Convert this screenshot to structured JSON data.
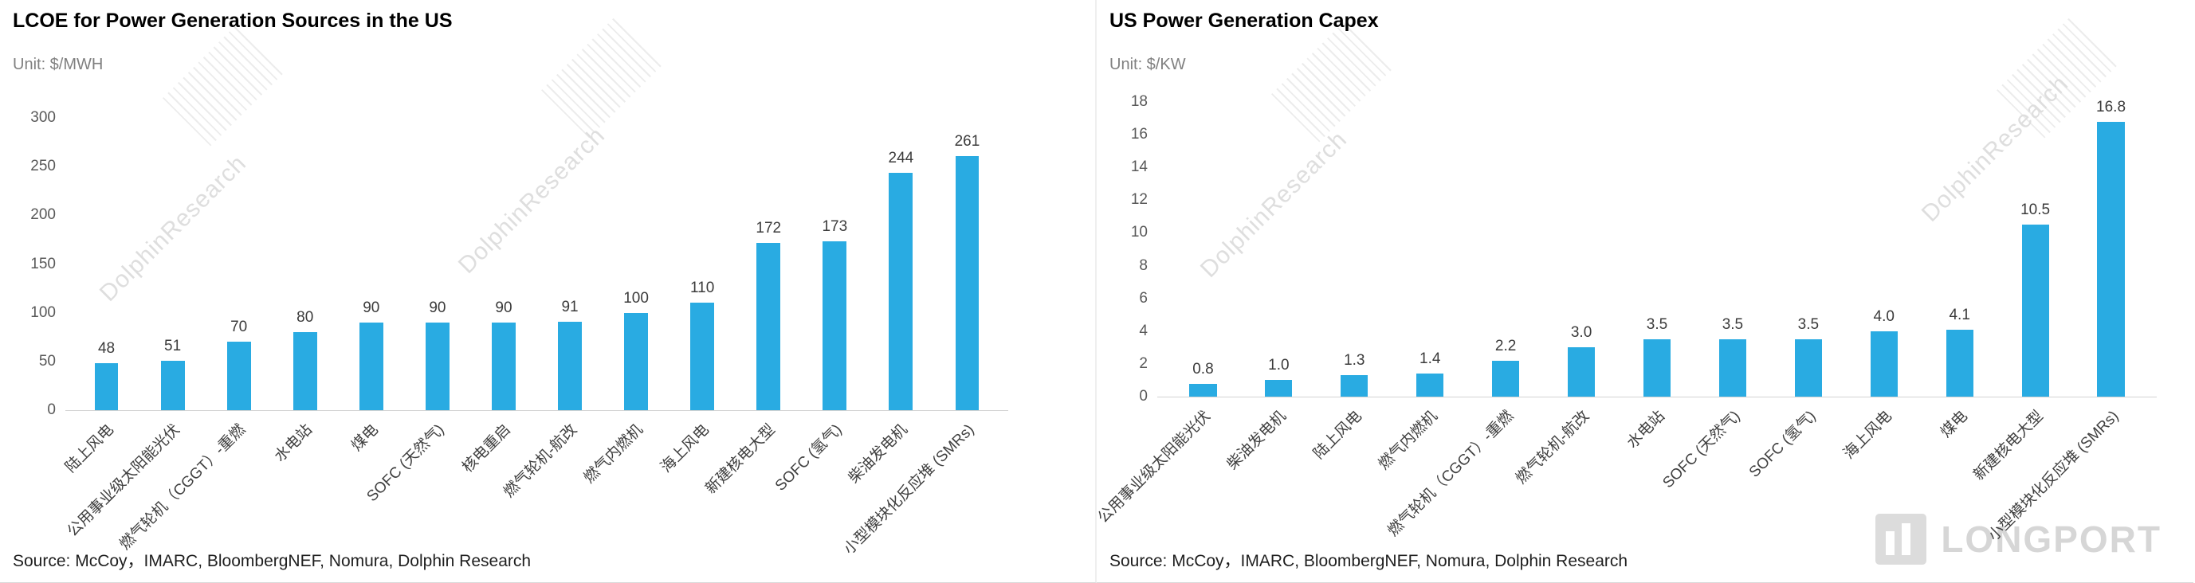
{
  "watermark_text": "DolphinResearch",
  "logo_text": "LONGPORT",
  "colors": {
    "bar_blue": "#29ABE2",
    "watermark_gray": "#DEDEDE",
    "axis_gray": "#D2D2D2",
    "unit_text_gray": "#808080"
  },
  "chart_data": [
    {
      "type": "bar",
      "title": "LCOE for Power Generation Sources in the US",
      "unit_label": "Unit: $/MWH",
      "source": "Source: McCoy，IMARC, BloombergNEF, Nomura, Dolphin Research",
      "categories": [
        "陆上风电",
        "公用事业级太阳能光伏",
        "燃气轮机（CGGT）-重燃",
        "水电站",
        "煤电",
        "SOFC (天然气)",
        "核电重启",
        "燃气轮机-航改",
        "燃气内燃机",
        "海上风电",
        "新建核电大型",
        "SOFC (氢气)",
        "柴油发电机",
        "小型模块化反应堆 (SMRs)"
      ],
      "values": [
        48,
        51,
        70,
        80,
        90,
        90,
        90,
        91,
        100,
        110,
        172,
        173,
        244,
        261
      ],
      "value_labels": [
        "48",
        "51",
        "70",
        "80",
        "90",
        "90",
        "90",
        "91",
        "100",
        "110",
        "172",
        "173",
        "244",
        "261"
      ],
      "ylim": [
        0,
        300
      ],
      "yticks": [
        0,
        50,
        100,
        150,
        200,
        250,
        300
      ],
      "grid": false,
      "legend": "none"
    },
    {
      "type": "bar",
      "title": "US Power Generation Capex",
      "unit_label": "Unit: $/KW",
      "source": "Source: McCoy，IMARC, BloombergNEF, Nomura, Dolphin Research",
      "categories": [
        "公用事业级太阳能光伏",
        "柴油发电机",
        "陆上风电",
        "燃气内燃机",
        "燃气轮机（CGGT）-重燃",
        "燃气轮机-航改",
        "水电站",
        "SOFC (天然气)",
        "SOFC (氢气)",
        "海上风电",
        "煤电",
        "新建核电大型",
        "小型模块化反应堆 (SMRs)"
      ],
      "values": [
        0.8,
        1.0,
        1.3,
        1.4,
        2.2,
        3.0,
        3.5,
        3.5,
        3.5,
        4.0,
        4.1,
        10.5,
        16.8
      ],
      "value_labels": [
        "0.8",
        "1.0",
        "1.3",
        "1.4",
        "2.2",
        "3.0",
        "3.5",
        "3.5",
        "3.5",
        "4.0",
        "4.1",
        "10.5",
        "16.8"
      ],
      "ylim": [
        0,
        18
      ],
      "yticks": [
        0,
        2,
        4,
        6,
        8,
        10,
        12,
        14,
        16,
        18
      ],
      "grid": false,
      "legend": "none"
    }
  ]
}
